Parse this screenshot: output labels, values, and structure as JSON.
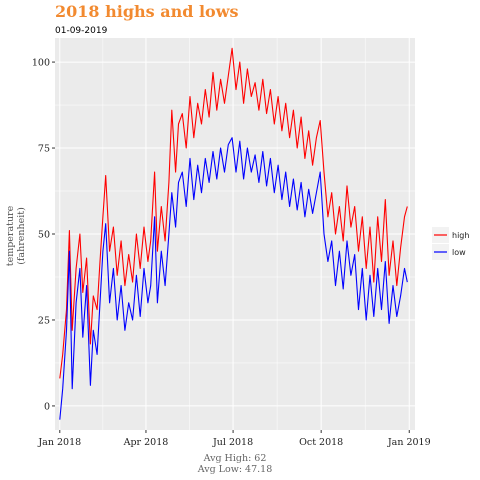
{
  "chart_data": {
    "type": "line",
    "title": "2018 highs and lows",
    "subtitle": "01-09-2019",
    "xlabel": "",
    "ylabel": "temperature (fahrenheit)",
    "ylabel_lines": [
      "temperature",
      "(fahrenheit)"
    ],
    "xlim": [
      "2017-12-27",
      "2019-01-07"
    ],
    "ylim": [
      -7,
      107
    ],
    "x_ticks": [
      {
        "date": "2018-01-01",
        "label": "Jan 2018"
      },
      {
        "date": "2018-04-01",
        "label": "Apr 2018"
      },
      {
        "date": "2018-07-01",
        "label": "Jul 2018"
      },
      {
        "date": "2018-10-01",
        "label": "Oct 2018"
      },
      {
        "date": "2019-01-01",
        "label": "Jan 2019"
      }
    ],
    "y_ticks": [
      0,
      25,
      50,
      75,
      100
    ],
    "grid": true,
    "legend_position": "right",
    "caption_lines": [
      "Avg High: 62",
      "Avg Low: 47.18"
    ],
    "series": [
      {
        "name": "high",
        "color": "#ff0000",
        "points": [
          [
            "2018-01-01",
            8
          ],
          [
            "2018-01-04",
            15
          ],
          [
            "2018-01-08",
            28
          ],
          [
            "2018-01-11",
            51
          ],
          [
            "2018-01-14",
            22
          ],
          [
            "2018-01-18",
            40
          ],
          [
            "2018-01-22",
            50
          ],
          [
            "2018-01-25",
            33
          ],
          [
            "2018-01-29",
            43
          ],
          [
            "2018-02-02",
            18
          ],
          [
            "2018-02-05",
            32
          ],
          [
            "2018-02-09",
            28
          ],
          [
            "2018-02-12",
            42
          ],
          [
            "2018-02-15",
            55
          ],
          [
            "2018-02-18",
            67
          ],
          [
            "2018-02-22",
            45
          ],
          [
            "2018-02-26",
            52
          ],
          [
            "2018-03-02",
            38
          ],
          [
            "2018-03-06",
            48
          ],
          [
            "2018-03-10",
            35
          ],
          [
            "2018-03-14",
            44
          ],
          [
            "2018-03-18",
            36
          ],
          [
            "2018-03-22",
            50
          ],
          [
            "2018-03-26",
            40
          ],
          [
            "2018-03-30",
            52
          ],
          [
            "2018-04-03",
            42
          ],
          [
            "2018-04-06",
            48
          ],
          [
            "2018-04-10",
            68
          ],
          [
            "2018-04-13",
            45
          ],
          [
            "2018-04-17",
            58
          ],
          [
            "2018-04-21",
            48
          ],
          [
            "2018-04-25",
            65
          ],
          [
            "2018-04-28",
            86
          ],
          [
            "2018-05-02",
            68
          ],
          [
            "2018-05-05",
            82
          ],
          [
            "2018-05-09",
            85
          ],
          [
            "2018-05-13",
            75
          ],
          [
            "2018-05-17",
            90
          ],
          [
            "2018-05-21",
            78
          ],
          [
            "2018-05-25",
            88
          ],
          [
            "2018-05-29",
            82
          ],
          [
            "2018-06-02",
            92
          ],
          [
            "2018-06-06",
            84
          ],
          [
            "2018-06-10",
            97
          ],
          [
            "2018-06-14",
            86
          ],
          [
            "2018-06-18",
            95
          ],
          [
            "2018-06-22",
            88
          ],
          [
            "2018-06-26",
            96
          ],
          [
            "2018-06-30",
            104
          ],
          [
            "2018-07-04",
            92
          ],
          [
            "2018-07-08",
            100
          ],
          [
            "2018-07-12",
            88
          ],
          [
            "2018-07-16",
            98
          ],
          [
            "2018-07-20",
            90
          ],
          [
            "2018-07-24",
            94
          ],
          [
            "2018-07-28",
            86
          ],
          [
            "2018-08-01",
            95
          ],
          [
            "2018-08-05",
            85
          ],
          [
            "2018-08-09",
            92
          ],
          [
            "2018-08-13",
            82
          ],
          [
            "2018-08-17",
            90
          ],
          [
            "2018-08-21",
            80
          ],
          [
            "2018-08-25",
            88
          ],
          [
            "2018-08-29",
            78
          ],
          [
            "2018-09-02",
            86
          ],
          [
            "2018-09-06",
            75
          ],
          [
            "2018-09-10",
            84
          ],
          [
            "2018-09-14",
            72
          ],
          [
            "2018-09-18",
            80
          ],
          [
            "2018-09-22",
            70
          ],
          [
            "2018-09-26",
            78
          ],
          [
            "2018-09-30",
            83
          ],
          [
            "2018-10-04",
            68
          ],
          [
            "2018-10-08",
            55
          ],
          [
            "2018-10-12",
            62
          ],
          [
            "2018-10-16",
            50
          ],
          [
            "2018-10-20",
            58
          ],
          [
            "2018-10-24",
            48
          ],
          [
            "2018-10-28",
            64
          ],
          [
            "2018-11-01",
            52
          ],
          [
            "2018-11-05",
            58
          ],
          [
            "2018-11-09",
            45
          ],
          [
            "2018-11-13",
            55
          ],
          [
            "2018-11-17",
            40
          ],
          [
            "2018-11-21",
            52
          ],
          [
            "2018-11-25",
            36
          ],
          [
            "2018-11-29",
            55
          ],
          [
            "2018-12-03",
            42
          ],
          [
            "2018-12-07",
            60
          ],
          [
            "2018-12-11",
            38
          ],
          [
            "2018-12-15",
            48
          ],
          [
            "2018-12-19",
            35
          ],
          [
            "2018-12-23",
            46
          ],
          [
            "2018-12-27",
            55
          ],
          [
            "2018-12-30",
            58
          ]
        ]
      },
      {
        "name": "low",
        "color": "#0000ff",
        "points": [
          [
            "2018-01-01",
            -4
          ],
          [
            "2018-01-04",
            5
          ],
          [
            "2018-01-08",
            22
          ],
          [
            "2018-01-11",
            45
          ],
          [
            "2018-01-14",
            5
          ],
          [
            "2018-01-18",
            30
          ],
          [
            "2018-01-22",
            40
          ],
          [
            "2018-01-25",
            20
          ],
          [
            "2018-01-29",
            35
          ],
          [
            "2018-02-02",
            6
          ],
          [
            "2018-02-05",
            22
          ],
          [
            "2018-02-09",
            15
          ],
          [
            "2018-02-12",
            30
          ],
          [
            "2018-02-15",
            45
          ],
          [
            "2018-02-18",
            53
          ],
          [
            "2018-02-22",
            30
          ],
          [
            "2018-02-26",
            40
          ],
          [
            "2018-03-02",
            25
          ],
          [
            "2018-03-06",
            35
          ],
          [
            "2018-03-10",
            22
          ],
          [
            "2018-03-14",
            30
          ],
          [
            "2018-03-18",
            25
          ],
          [
            "2018-03-22",
            38
          ],
          [
            "2018-03-26",
            26
          ],
          [
            "2018-03-30",
            40
          ],
          [
            "2018-04-03",
            30
          ],
          [
            "2018-04-06",
            35
          ],
          [
            "2018-04-10",
            55
          ],
          [
            "2018-04-13",
            30
          ],
          [
            "2018-04-17",
            45
          ],
          [
            "2018-04-21",
            35
          ],
          [
            "2018-04-25",
            50
          ],
          [
            "2018-04-28",
            62
          ],
          [
            "2018-05-02",
            52
          ],
          [
            "2018-05-05",
            65
          ],
          [
            "2018-05-09",
            68
          ],
          [
            "2018-05-13",
            58
          ],
          [
            "2018-05-17",
            72
          ],
          [
            "2018-05-21",
            60
          ],
          [
            "2018-05-25",
            70
          ],
          [
            "2018-05-29",
            62
          ],
          [
            "2018-06-02",
            72
          ],
          [
            "2018-06-06",
            65
          ],
          [
            "2018-06-10",
            74
          ],
          [
            "2018-06-14",
            66
          ],
          [
            "2018-06-18",
            75
          ],
          [
            "2018-06-22",
            68
          ],
          [
            "2018-06-26",
            76
          ],
          [
            "2018-06-30",
            78
          ],
          [
            "2018-07-04",
            68
          ],
          [
            "2018-07-08",
            77
          ],
          [
            "2018-07-12",
            66
          ],
          [
            "2018-07-16",
            75
          ],
          [
            "2018-07-20",
            68
          ],
          [
            "2018-07-24",
            73
          ],
          [
            "2018-07-28",
            65
          ],
          [
            "2018-08-01",
            74
          ],
          [
            "2018-08-05",
            64
          ],
          [
            "2018-08-09",
            72
          ],
          [
            "2018-08-13",
            62
          ],
          [
            "2018-08-17",
            70
          ],
          [
            "2018-08-21",
            60
          ],
          [
            "2018-08-25",
            68
          ],
          [
            "2018-08-29",
            58
          ],
          [
            "2018-09-02",
            66
          ],
          [
            "2018-09-06",
            57
          ],
          [
            "2018-09-10",
            65
          ],
          [
            "2018-09-14",
            55
          ],
          [
            "2018-09-18",
            63
          ],
          [
            "2018-09-22",
            56
          ],
          [
            "2018-09-26",
            62
          ],
          [
            "2018-09-30",
            68
          ],
          [
            "2018-10-04",
            50
          ],
          [
            "2018-10-08",
            42
          ],
          [
            "2018-10-12",
            48
          ],
          [
            "2018-10-16",
            35
          ],
          [
            "2018-10-20",
            45
          ],
          [
            "2018-10-24",
            34
          ],
          [
            "2018-10-28",
            48
          ],
          [
            "2018-11-01",
            38
          ],
          [
            "2018-11-05",
            44
          ],
          [
            "2018-11-09",
            28
          ],
          [
            "2018-11-13",
            40
          ],
          [
            "2018-11-17",
            25
          ],
          [
            "2018-11-21",
            38
          ],
          [
            "2018-11-25",
            26
          ],
          [
            "2018-11-29",
            40
          ],
          [
            "2018-12-03",
            28
          ],
          [
            "2018-12-07",
            42
          ],
          [
            "2018-12-11",
            24
          ],
          [
            "2018-12-15",
            35
          ],
          [
            "2018-12-19",
            26
          ],
          [
            "2018-12-23",
            32
          ],
          [
            "2018-12-27",
            40
          ],
          [
            "2018-12-30",
            36
          ]
        ]
      }
    ]
  },
  "colors": {
    "title": "#f28a30",
    "panel_background": "#ebebeb",
    "grid_line": "#ffffff"
  }
}
